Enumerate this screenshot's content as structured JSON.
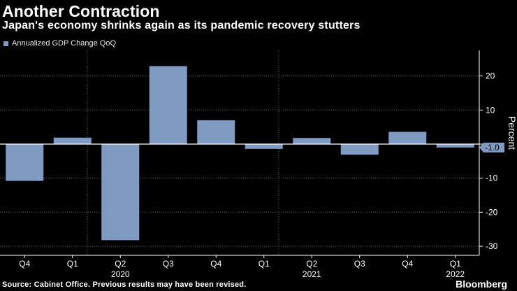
{
  "title": "Another Contraction",
  "subtitle": "Japan's economy shrinks again as its pandemic recovery stutters",
  "footer": {
    "source": "Source: Cabinet Office. Previous results may have been revised.",
    "brand": "Bloomberg"
  },
  "colors": {
    "bar": "#7f9bc1",
    "background": "#000000",
    "grid": "#666666"
  },
  "chart_data": {
    "type": "bar",
    "categories": [
      "Q4",
      "Q1",
      "Q2",
      "Q3",
      "Q4",
      "Q1",
      "Q2",
      "Q3",
      "Q4",
      "Q1"
    ],
    "years": [
      {
        "label": "2020",
        "anchor_index": 2
      },
      {
        "label": "2021",
        "anchor_index": 6
      },
      {
        "label": "2022",
        "anchor_index": 9
      }
    ],
    "series": [
      {
        "name": "Annualized GDP Change QoQ",
        "values": [
          -10.8,
          1.9,
          -28.2,
          22.9,
          7.0,
          -1.4,
          1.8,
          -3.1,
          3.6,
          -1.0
        ]
      }
    ],
    "ylim": [
      -32,
      28
    ],
    "yticks": [
      20,
      10,
      0,
      -10,
      -20,
      -30
    ],
    "ytick_labels": [
      "20",
      "10",
      "0",
      "-10",
      "-20",
      "-30"
    ],
    "ylabel": "Percent",
    "last_value_label": "-1.0",
    "legend_position": "top-left",
    "grid": true
  }
}
